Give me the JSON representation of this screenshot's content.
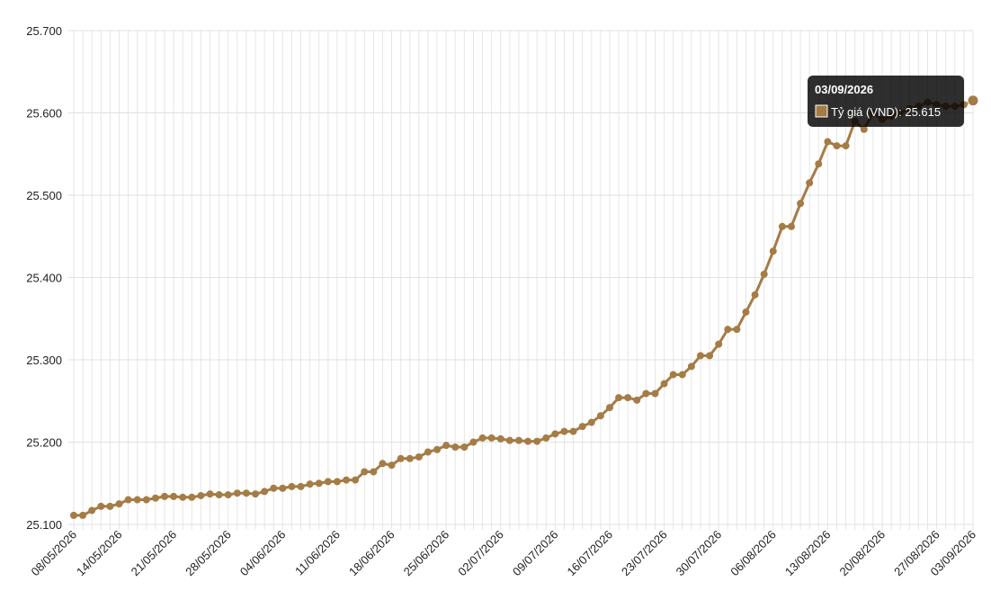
{
  "chart_data": {
    "type": "line",
    "categories": [
      "08/05/2026",
      null,
      null,
      null,
      null,
      "14/05/2026",
      null,
      null,
      null,
      null,
      null,
      "21/05/2026",
      null,
      null,
      null,
      null,
      null,
      "28/05/2026",
      null,
      null,
      null,
      null,
      null,
      "04/06/2026",
      null,
      null,
      null,
      null,
      null,
      "11/06/2026",
      null,
      null,
      null,
      null,
      null,
      "18/06/2026",
      null,
      null,
      null,
      null,
      null,
      "25/06/2026",
      null,
      null,
      null,
      null,
      null,
      "02/07/2026",
      null,
      null,
      null,
      null,
      null,
      "09/07/2026",
      null,
      null,
      null,
      null,
      null,
      "16/07/2026",
      null,
      null,
      null,
      null,
      null,
      "23/07/2026",
      null,
      null,
      null,
      null,
      null,
      "30/07/2026",
      null,
      null,
      null,
      null,
      null,
      "06/08/2026",
      null,
      null,
      null,
      null,
      null,
      "13/08/2026",
      null,
      null,
      null,
      null,
      null,
      "20/08/2026",
      null,
      null,
      null,
      null,
      null,
      "27/08/2026",
      null,
      null,
      null,
      "03/09/2026"
    ],
    "series": [
      {
        "color": "#a57c45",
        "values": [
          25111,
          25111,
          25117,
          25122,
          25122,
          25125,
          25130,
          25130,
          25130,
          25132,
          25134,
          25134,
          25133,
          25133,
          25135,
          25137,
          25136,
          25136,
          25138,
          25138,
          25137,
          25140,
          25144,
          25144,
          25146,
          25146,
          25149,
          25150,
          25152,
          25152,
          25154,
          25154,
          25164,
          25164,
          25174,
          25172,
          25180,
          25180,
          25182,
          25188,
          25191,
          25196,
          25194,
          25194,
          25200,
          25205,
          25205,
          25204,
          25202,
          25202,
          25201,
          25201,
          25205,
          25210,
          25213,
          25213,
          25219,
          25224,
          25232,
          25242,
          25254,
          25254,
          25251,
          25259,
          25259,
          25271,
          25282,
          25282,
          25292,
          25305,
          25305,
          25319,
          25337,
          25337,
          25358,
          25379,
          25404,
          25432,
          25462,
          25462,
          25490,
          25515,
          25538,
          25565,
          25560,
          25560,
          25590,
          25580,
          25600,
          25592,
          25596,
          25600,
          25605,
          25608,
          25613,
          25610,
          25608,
          25608,
          25610,
          25615
        ]
      }
    ],
    "ylim": [
      25100,
      25700
    ],
    "yticks": [
      {
        "value": 25100,
        "label": "25.100"
      },
      {
        "value": 25200,
        "label": "25.200"
      },
      {
        "value": 25300,
        "label": "25.300"
      },
      {
        "value": 25400,
        "label": "25.400"
      },
      {
        "value": 25500,
        "label": "25.500"
      },
      {
        "value": 25600,
        "label": "25.600"
      },
      {
        "value": 25700,
        "label": "25.700"
      }
    ],
    "grid": true,
    "tooltip": {
      "index": 99,
      "title": "03/09/2026",
      "label": "Tỷ giá (VND): 25.615"
    }
  }
}
